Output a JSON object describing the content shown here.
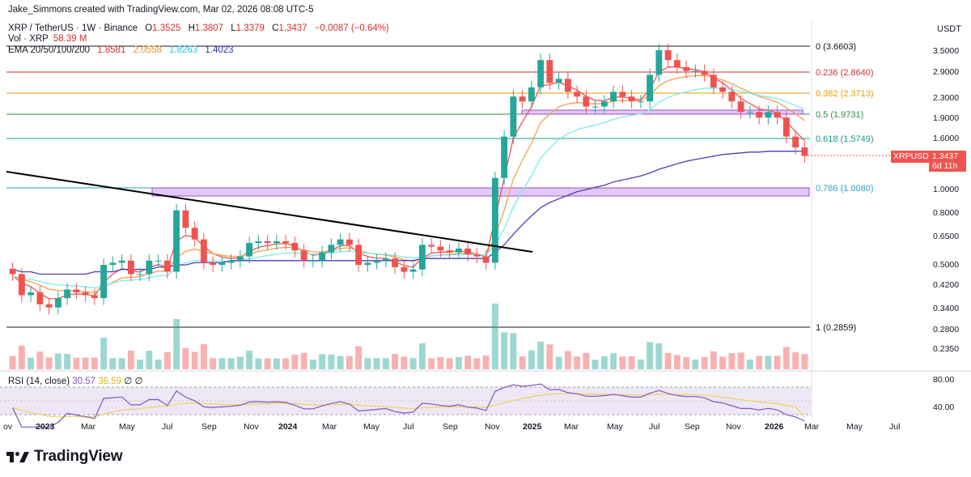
{
  "header": {
    "attribution": "Jake_Simmons created with TradingView.com, Mar 02, 2026 08:08 UTC-5",
    "symbol": "XRP / TetherUS · 1W · Binance",
    "open_label": "O",
    "open": "1.3525",
    "high_label": "H",
    "high": "1.3807",
    "low_label": "L",
    "low": "1.3379",
    "close_label": "C",
    "close": "1.3437",
    "change": "−0.0087 (−0.64%)",
    "vol_label": "Vol · XRP",
    "vol": "58.39 M",
    "ema_label": "EMA 20/50/100/200",
    "ema20": "1.8581",
    "ema50": "2.0558",
    "ema100": "1.8263",
    "ema200": "1.4023"
  },
  "rsi": {
    "label": "RSI (14, close)",
    "value": "30.57",
    "ma": "36.59",
    "sym1": "∅",
    "sym2": "∅"
  },
  "price_axis": {
    "currency": "USDT",
    "ticks": [
      "3.5000",
      "2.9000",
      "2.3000",
      "1.9000",
      "1.6000",
      "1.3437",
      "1.0000",
      "0.8000",
      "0.6500",
      "0.5000",
      "0.4200",
      "0.3400",
      "0.2800",
      "0.2350"
    ],
    "rsi_ticks": [
      "80.00",
      "40.00"
    ]
  },
  "last_price": {
    "symbol": "XRPUSDT",
    "price": "1.3437",
    "countdown": "6d 11h"
  },
  "time_axis": [
    "ov",
    "2023",
    "Mar",
    "May",
    "Jul",
    "Sep",
    "Nov",
    "2024",
    "Mar",
    "May",
    "Jul",
    "Sep",
    "Nov",
    "2025",
    "Mar",
    "May",
    "Jul",
    "Sep",
    "Nov",
    "2026",
    "Mar",
    "May",
    "Jul"
  ],
  "fib_levels": [
    {
      "label": "0 (3.6603)",
      "color": "#131722"
    },
    {
      "label": "0.236 (2.8640)",
      "color": "#d32f2f"
    },
    {
      "label": "0.382 (2.3713)",
      "color": "#e6a000"
    },
    {
      "label": "0.5 (1.9731)",
      "color": "#2e8b3e"
    },
    {
      "label": "0.618 (1.5749)",
      "color": "#149c8c"
    },
    {
      "label": "0.786 (1.0080)",
      "color": "#26a6c6"
    },
    {
      "label": "1 (0.2859)",
      "color": "#131722"
    }
  ],
  "colors": {
    "up": "#26a69a",
    "down": "#ef5350",
    "ema20": "#ef5350",
    "ema50": "#f0a24b",
    "ema100": "#7ee8f0",
    "ema200": "#4a3fb3",
    "rsi": "#7e57c2",
    "rsi_ma": "#f2d25a",
    "zone": "#c99aef"
  },
  "logo": {
    "text": "TradingView"
  },
  "chart_data": {
    "type": "candlestick",
    "title": "XRP / TetherUS · 1W · Binance",
    "ylabel": "USDT",
    "y_scale": "log",
    "ylim": [
      0.21,
      4.0
    ],
    "x": [
      "2022-10-30",
      "2022-11-13",
      "2022-11-27",
      "2022-12-11",
      "2022-12-25",
      "2023-01-08",
      "2023-01-22",
      "2023-02-05",
      "2023-02-19",
      "2023-03-05",
      "2023-03-19",
      "2023-04-02",
      "2023-04-16",
      "2023-04-30",
      "2023-05-14",
      "2023-05-28",
      "2023-06-11",
      "2023-06-25",
      "2023-07-09",
      "2023-07-23",
      "2023-08-06",
      "2023-08-20",
      "2023-09-03",
      "2023-09-17",
      "2023-10-01",
      "2023-10-15",
      "2023-10-29",
      "2023-11-12",
      "2023-11-26",
      "2023-12-10",
      "2023-12-24",
      "2024-01-07",
      "2024-01-21",
      "2024-02-04",
      "2024-02-18",
      "2024-03-03",
      "2024-03-17",
      "2024-03-31",
      "2024-04-14",
      "2024-04-28",
      "2024-05-12",
      "2024-05-26",
      "2024-06-09",
      "2024-06-23",
      "2024-07-07",
      "2024-07-21",
      "2024-08-04",
      "2024-08-18",
      "2024-09-01",
      "2024-09-15",
      "2024-09-29",
      "2024-10-13",
      "2024-10-27",
      "2024-11-10",
      "2024-11-24",
      "2024-12-08",
      "2024-12-22",
      "2025-01-05",
      "2025-01-19",
      "2025-02-02",
      "2025-02-16",
      "2025-03-02",
      "2025-03-16",
      "2025-03-30",
      "2025-04-13",
      "2025-04-27",
      "2025-05-11",
      "2025-05-25",
      "2025-06-08",
      "2025-06-22",
      "2025-07-06",
      "2025-07-20",
      "2025-08-03",
      "2025-08-17",
      "2025-08-31",
      "2025-09-14",
      "2025-09-28",
      "2025-10-12",
      "2025-10-26",
      "2025-11-09",
      "2025-11-23",
      "2025-12-07",
      "2025-12-21",
      "2026-01-04",
      "2026-01-18",
      "2026-02-01",
      "2026-02-15",
      "2026-03-01"
    ],
    "close": [
      0.46,
      0.38,
      0.39,
      0.35,
      0.34,
      0.37,
      0.4,
      0.39,
      0.38,
      0.37,
      0.5,
      0.51,
      0.52,
      0.46,
      0.46,
      0.52,
      0.52,
      0.47,
      0.82,
      0.7,
      0.63,
      0.51,
      0.5,
      0.51,
      0.52,
      0.54,
      0.61,
      0.62,
      0.61,
      0.62,
      0.61,
      0.57,
      0.52,
      0.52,
      0.56,
      0.6,
      0.63,
      0.6,
      0.5,
      0.51,
      0.52,
      0.53,
      0.49,
      0.47,
      0.48,
      0.6,
      0.59,
      0.57,
      0.56,
      0.58,
      0.55,
      0.54,
      0.51,
      1.1,
      1.6,
      2.3,
      2.2,
      2.5,
      3.2,
      2.6,
      2.7,
      2.4,
      2.3,
      2.1,
      2.1,
      2.2,
      2.4,
      2.3,
      2.2,
      2.2,
      2.8,
      3.5,
      3.2,
      3.0,
      2.9,
      2.9,
      2.8,
      2.5,
      2.4,
      2.2,
      2.0,
      2.0,
      1.9,
      2.0,
      1.9,
      1.6,
      1.45,
      1.3437
    ],
    "ema200": [
      0.48,
      0.47,
      0.47,
      0.46,
      0.46,
      0.46,
      0.46,
      0.46,
      0.46,
      0.47,
      0.47,
      0.47,
      0.48,
      0.48,
      0.48,
      0.48,
      0.49,
      0.49,
      0.5,
      0.5,
      0.51,
      0.51,
      0.51,
      0.51,
      0.52,
      0.52,
      0.52,
      0.52,
      0.52,
      0.52,
      0.52,
      0.52,
      0.52,
      0.52,
      0.52,
      0.52,
      0.52,
      0.52,
      0.52,
      0.52,
      0.52,
      0.52,
      0.52,
      0.52,
      0.52,
      0.53,
      0.53,
      0.53,
      0.53,
      0.53,
      0.53,
      0.53,
      0.53,
      0.56,
      0.6,
      0.66,
      0.72,
      0.78,
      0.84,
      0.88,
      0.91,
      0.94,
      0.97,
      0.99,
      1.01,
      1.03,
      1.06,
      1.08,
      1.1,
      1.12,
      1.15,
      1.19,
      1.22,
      1.25,
      1.28,
      1.3,
      1.32,
      1.34,
      1.36,
      1.37,
      1.38,
      1.39,
      1.39,
      1.4,
      1.4,
      1.4,
      1.4,
      1.4023
    ],
    "fib_levels": [
      {
        "ratio": 0,
        "price": 3.6603
      },
      {
        "ratio": 0.236,
        "price": 2.864
      },
      {
        "ratio": 0.382,
        "price": 2.3713
      },
      {
        "ratio": 0.5,
        "price": 1.9731
      },
      {
        "ratio": 0.618,
        "price": 1.5749
      },
      {
        "ratio": 0.786,
        "price": 1.008
      },
      {
        "ratio": 1,
        "price": 0.2859
      }
    ],
    "indicators": {
      "ema20": 1.8581,
      "ema50": 2.0558,
      "ema100": 1.8263,
      "ema200": 1.4023,
      "rsi": 30.57,
      "rsi_ma": 36.59
    }
  }
}
